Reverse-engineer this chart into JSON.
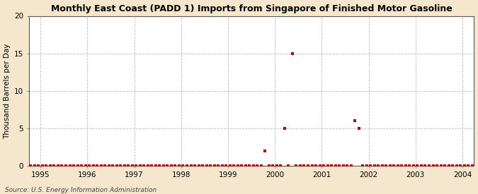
{
  "title": "Monthly East Coast (PADD 1) Imports from Singapore of Finished Motor Gasoline",
  "ylabel": "Thousand Barrels per Day",
  "source": "Source: U.S. Energy Information Administration",
  "background_color": "#f5e6ce",
  "plot_background_color": "#ffffff",
  "marker_color": "#aa0000",
  "xlim_start": 1994.75,
  "xlim_end": 2004.25,
  "ylim": [
    0,
    20
  ],
  "yticks": [
    0,
    5,
    10,
    15,
    20
  ],
  "xticks": [
    1995,
    1996,
    1997,
    1998,
    1999,
    2000,
    2001,
    2002,
    2003,
    2004
  ],
  "data_points": [
    {
      "year": 1994,
      "month": 10,
      "value": 0
    },
    {
      "year": 1994,
      "month": 11,
      "value": 0
    },
    {
      "year": 1994,
      "month": 12,
      "value": 0
    },
    {
      "year": 1995,
      "month": 1,
      "value": 0
    },
    {
      "year": 1995,
      "month": 2,
      "value": 0
    },
    {
      "year": 1995,
      "month": 3,
      "value": 0
    },
    {
      "year": 1995,
      "month": 4,
      "value": 0
    },
    {
      "year": 1995,
      "month": 5,
      "value": 0
    },
    {
      "year": 1995,
      "month": 6,
      "value": 0
    },
    {
      "year": 1995,
      "month": 7,
      "value": 0
    },
    {
      "year": 1995,
      "month": 8,
      "value": 0
    },
    {
      "year": 1995,
      "month": 9,
      "value": 0
    },
    {
      "year": 1995,
      "month": 10,
      "value": 0
    },
    {
      "year": 1995,
      "month": 11,
      "value": 0
    },
    {
      "year": 1995,
      "month": 12,
      "value": 0
    },
    {
      "year": 1996,
      "month": 1,
      "value": 0
    },
    {
      "year": 1996,
      "month": 2,
      "value": 0
    },
    {
      "year": 1996,
      "month": 3,
      "value": 0
    },
    {
      "year": 1996,
      "month": 4,
      "value": 0
    },
    {
      "year": 1996,
      "month": 5,
      "value": 0
    },
    {
      "year": 1996,
      "month": 6,
      "value": 0
    },
    {
      "year": 1996,
      "month": 7,
      "value": 0
    },
    {
      "year": 1996,
      "month": 8,
      "value": 0
    },
    {
      "year": 1996,
      "month": 9,
      "value": 0
    },
    {
      "year": 1996,
      "month": 10,
      "value": 0
    },
    {
      "year": 1996,
      "month": 11,
      "value": 0
    },
    {
      "year": 1996,
      "month": 12,
      "value": 0
    },
    {
      "year": 1997,
      "month": 1,
      "value": 0
    },
    {
      "year": 1997,
      "month": 2,
      "value": 0
    },
    {
      "year": 1997,
      "month": 3,
      "value": 0
    },
    {
      "year": 1997,
      "month": 4,
      "value": 0
    },
    {
      "year": 1997,
      "month": 5,
      "value": 0
    },
    {
      "year": 1997,
      "month": 6,
      "value": 0
    },
    {
      "year": 1997,
      "month": 7,
      "value": 0
    },
    {
      "year": 1997,
      "month": 8,
      "value": 0
    },
    {
      "year": 1997,
      "month": 9,
      "value": 0
    },
    {
      "year": 1997,
      "month": 10,
      "value": 0
    },
    {
      "year": 1997,
      "month": 11,
      "value": 0
    },
    {
      "year": 1997,
      "month": 12,
      "value": 0
    },
    {
      "year": 1998,
      "month": 1,
      "value": 0
    },
    {
      "year": 1998,
      "month": 2,
      "value": 0
    },
    {
      "year": 1998,
      "month": 3,
      "value": 0
    },
    {
      "year": 1998,
      "month": 4,
      "value": 0
    },
    {
      "year": 1998,
      "month": 5,
      "value": 0
    },
    {
      "year": 1998,
      "month": 6,
      "value": 0
    },
    {
      "year": 1998,
      "month": 7,
      "value": 0
    },
    {
      "year": 1998,
      "month": 8,
      "value": 0
    },
    {
      "year": 1998,
      "month": 9,
      "value": 0
    },
    {
      "year": 1998,
      "month": 10,
      "value": 0
    },
    {
      "year": 1998,
      "month": 11,
      "value": 0
    },
    {
      "year": 1998,
      "month": 12,
      "value": 0
    },
    {
      "year": 1999,
      "month": 1,
      "value": 0
    },
    {
      "year": 1999,
      "month": 2,
      "value": 0
    },
    {
      "year": 1999,
      "month": 3,
      "value": 0
    },
    {
      "year": 1999,
      "month": 4,
      "value": 0
    },
    {
      "year": 1999,
      "month": 5,
      "value": 0
    },
    {
      "year": 1999,
      "month": 6,
      "value": 0
    },
    {
      "year": 1999,
      "month": 7,
      "value": 0
    },
    {
      "year": 1999,
      "month": 8,
      "value": 0
    },
    {
      "year": 1999,
      "month": 9,
      "value": 0
    },
    {
      "year": 1999,
      "month": 10,
      "value": 2.0
    },
    {
      "year": 1999,
      "month": 11,
      "value": 0
    },
    {
      "year": 1999,
      "month": 12,
      "value": 0
    },
    {
      "year": 2000,
      "month": 1,
      "value": 0
    },
    {
      "year": 2000,
      "month": 2,
      "value": 0
    },
    {
      "year": 2000,
      "month": 3,
      "value": 5.0
    },
    {
      "year": 2000,
      "month": 4,
      "value": 0
    },
    {
      "year": 2000,
      "month": 5,
      "value": 15.0
    },
    {
      "year": 2000,
      "month": 6,
      "value": 0
    },
    {
      "year": 2000,
      "month": 7,
      "value": 0
    },
    {
      "year": 2000,
      "month": 8,
      "value": 0
    },
    {
      "year": 2000,
      "month": 9,
      "value": 0
    },
    {
      "year": 2000,
      "month": 10,
      "value": 0
    },
    {
      "year": 2000,
      "month": 11,
      "value": 0
    },
    {
      "year": 2000,
      "month": 12,
      "value": 0
    },
    {
      "year": 2001,
      "month": 1,
      "value": 0
    },
    {
      "year": 2001,
      "month": 2,
      "value": 0
    },
    {
      "year": 2001,
      "month": 3,
      "value": 0
    },
    {
      "year": 2001,
      "month": 4,
      "value": 0
    },
    {
      "year": 2001,
      "month": 5,
      "value": 0
    },
    {
      "year": 2001,
      "month": 6,
      "value": 0
    },
    {
      "year": 2001,
      "month": 7,
      "value": 0
    },
    {
      "year": 2001,
      "month": 8,
      "value": 0
    },
    {
      "year": 2001,
      "month": 9,
      "value": 6.0
    },
    {
      "year": 2001,
      "month": 10,
      "value": 5.0
    },
    {
      "year": 2001,
      "month": 11,
      "value": 0
    },
    {
      "year": 2001,
      "month": 12,
      "value": 0
    },
    {
      "year": 2002,
      "month": 1,
      "value": 0
    },
    {
      "year": 2002,
      "month": 2,
      "value": 0
    },
    {
      "year": 2002,
      "month": 3,
      "value": 0
    },
    {
      "year": 2002,
      "month": 4,
      "value": 0
    },
    {
      "year": 2002,
      "month": 5,
      "value": 0
    },
    {
      "year": 2002,
      "month": 6,
      "value": 0
    },
    {
      "year": 2002,
      "month": 7,
      "value": 0
    },
    {
      "year": 2002,
      "month": 8,
      "value": 0
    },
    {
      "year": 2002,
      "month": 9,
      "value": 0
    },
    {
      "year": 2002,
      "month": 10,
      "value": 0
    },
    {
      "year": 2002,
      "month": 11,
      "value": 0
    },
    {
      "year": 2002,
      "month": 12,
      "value": 0
    },
    {
      "year": 2003,
      "month": 1,
      "value": 0
    },
    {
      "year": 2003,
      "month": 2,
      "value": 0
    },
    {
      "year": 2003,
      "month": 3,
      "value": 0
    },
    {
      "year": 2003,
      "month": 4,
      "value": 0
    },
    {
      "year": 2003,
      "month": 5,
      "value": 0
    },
    {
      "year": 2003,
      "month": 6,
      "value": 0
    },
    {
      "year": 2003,
      "month": 7,
      "value": 0
    },
    {
      "year": 2003,
      "month": 8,
      "value": 0
    },
    {
      "year": 2003,
      "month": 9,
      "value": 0
    },
    {
      "year": 2003,
      "month": 10,
      "value": 0
    },
    {
      "year": 2003,
      "month": 11,
      "value": 0
    },
    {
      "year": 2003,
      "month": 12,
      "value": 0
    },
    {
      "year": 2004,
      "month": 1,
      "value": 0
    },
    {
      "year": 2004,
      "month": 2,
      "value": 0
    },
    {
      "year": 2004,
      "month": 3,
      "value": 0
    }
  ]
}
